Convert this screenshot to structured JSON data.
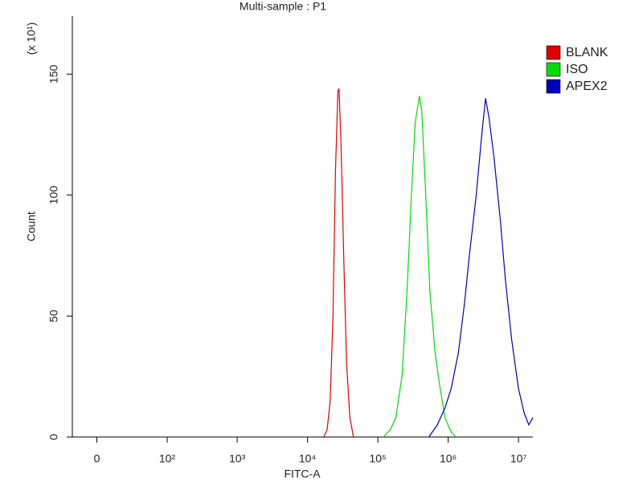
{
  "chart_data": {
    "type": "line",
    "title": "Multi-sample : P1",
    "xlabel": "FITC-A",
    "ylabel": "Count",
    "y_multiplier": "(x 10¹)",
    "xscale": "biexponential",
    "xlim": [
      -18,
      16000000
    ],
    "ylim": [
      0,
      174
    ],
    "xticks": [
      0,
      {
        "value": 100,
        "label": "10²"
      },
      {
        "value": 1000,
        "label": "10³"
      },
      {
        "value": 10000,
        "label": "10⁴"
      },
      {
        "value": 100000,
        "label": "10⁵"
      },
      {
        "value": 1000000,
        "label": "10⁶"
      },
      {
        "value": 10000000,
        "label": "10⁷"
      }
    ],
    "yticks": [
      0,
      50,
      100,
      150
    ],
    "legend": "right",
    "series": [
      {
        "name": "BLANK",
        "color": "#e00000",
        "x": [
          17000,
          19000,
          21000,
          23000,
          25000,
          27000,
          28000,
          30000,
          33000,
          36000,
          40000,
          45000
        ],
        "values": [
          0,
          3,
          15,
          50,
          110,
          143,
          144,
          120,
          70,
          30,
          8,
          0
        ]
      },
      {
        "name": "ISO",
        "color": "#00dd00",
        "x": [
          120000,
          150000,
          180000,
          220000,
          260000,
          300000,
          340000,
          390000,
          420000,
          480000,
          550000,
          650000,
          750000,
          900000,
          1100000,
          1300000
        ],
        "values": [
          0,
          3,
          8,
          25,
          60,
          100,
          130,
          141,
          135,
          100,
          60,
          35,
          22,
          8,
          2,
          0
        ]
      },
      {
        "name": "APEX2",
        "color": "#0000c0",
        "x": [
          530000,
          700000,
          900000,
          1100000,
          1400000,
          1700000,
          2000000,
          2500000,
          3000000,
          3400000,
          3800000,
          4500000,
          5500000,
          6500000,
          8000000,
          10000000,
          12000000,
          14000000,
          16000000
        ],
        "values": [
          0,
          5,
          12,
          20,
          35,
          55,
          75,
          100,
          125,
          140,
          132,
          115,
          90,
          65,
          40,
          20,
          10,
          5,
          8
        ]
      }
    ]
  }
}
